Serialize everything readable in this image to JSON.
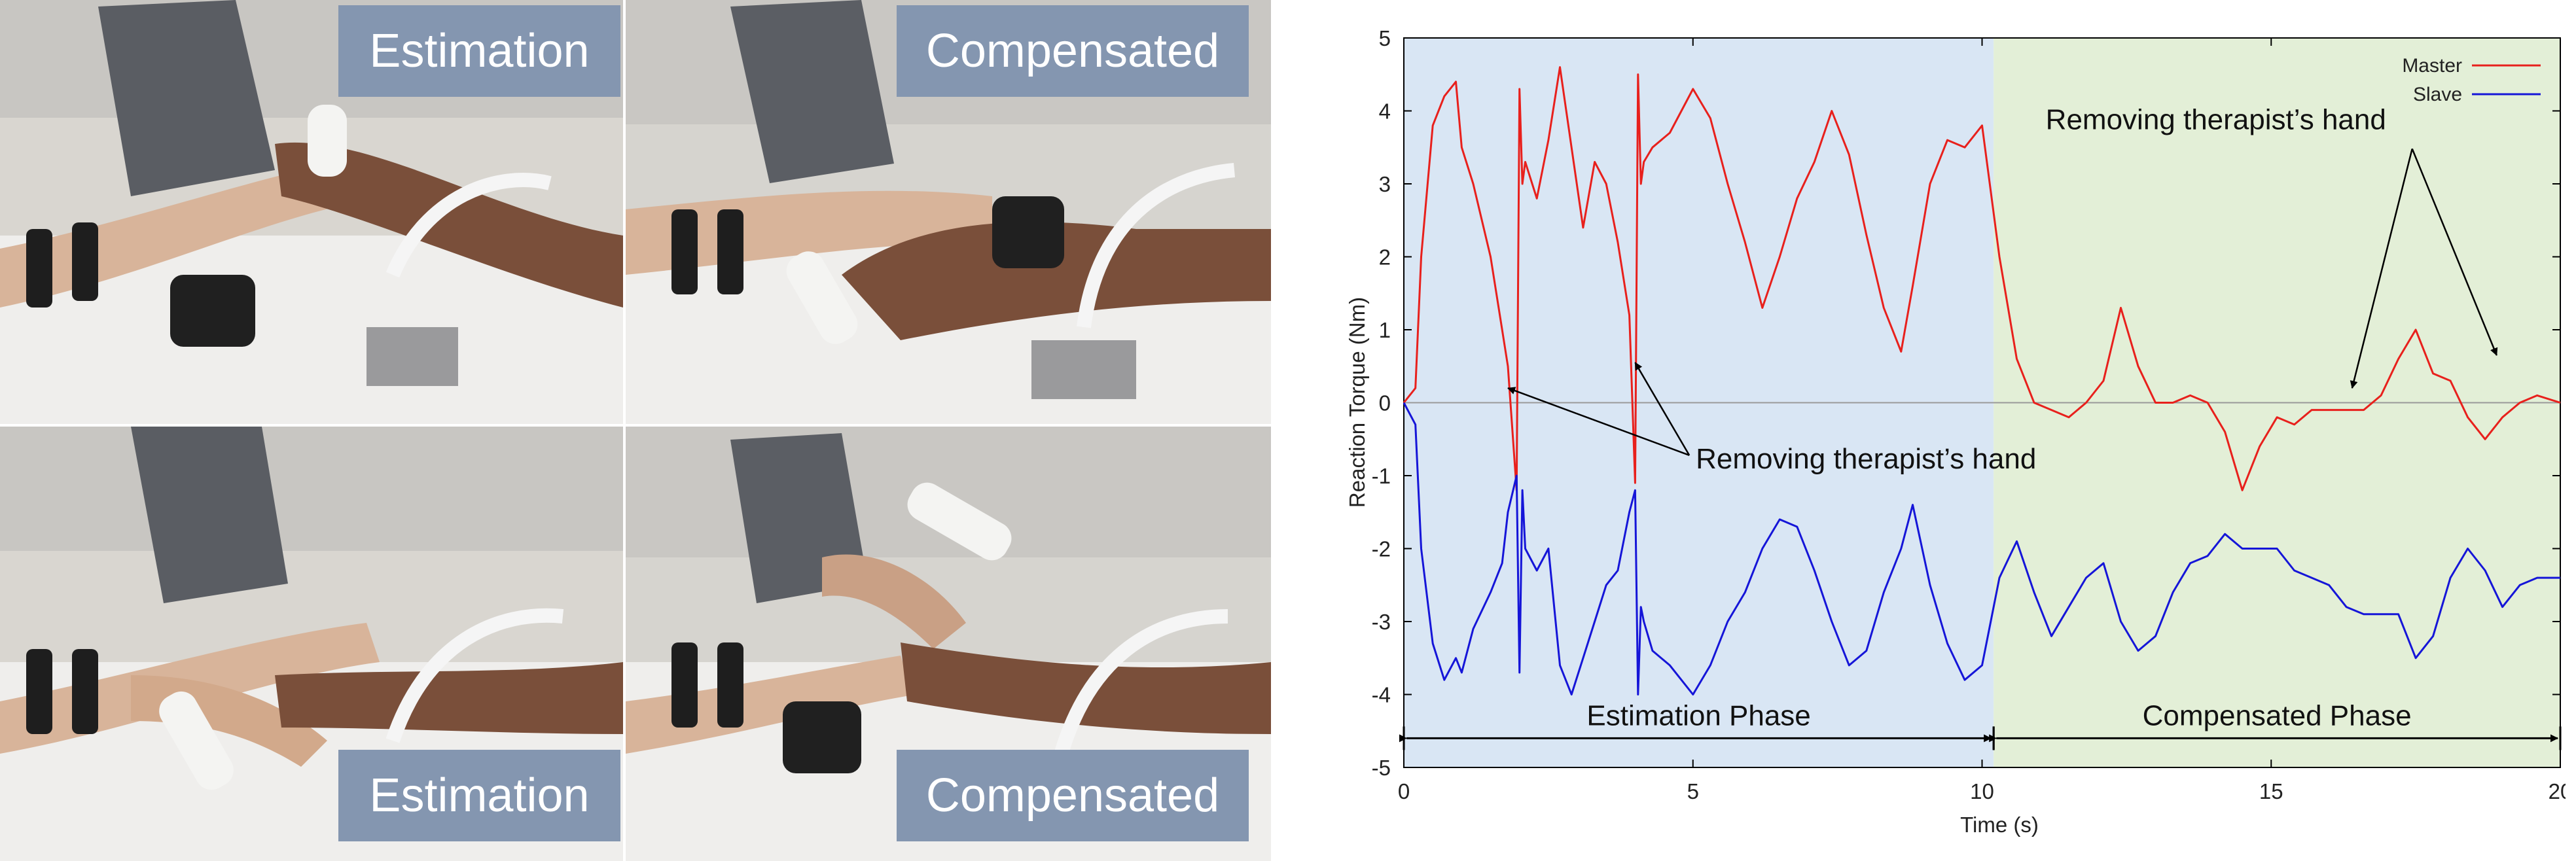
{
  "photos": {
    "top_left_caption": "Estimation",
    "top_right_caption": "Compensated",
    "bottom_left_caption": "Estimation",
    "bottom_right_caption": "Compensated"
  },
  "chart_data": {
    "type": "line",
    "title": "",
    "xlabel": "Time (s)",
    "ylabel": "Reaction Torque (Nm)",
    "xlim": [
      0,
      20
    ],
    "ylim": [
      -5,
      5
    ],
    "xticks": [
      0,
      5,
      10,
      15,
      20
    ],
    "yticks": [
      -5,
      -4,
      -3,
      -2,
      -1,
      0,
      1,
      2,
      3,
      4,
      5
    ],
    "grid": false,
    "legend_position": "top-right",
    "series": [
      {
        "name": "Master",
        "color": "#e8201c",
        "x": [
          0,
          0.2,
          0.3,
          0.5,
          0.7,
          0.9,
          1.0,
          1.2,
          1.5,
          1.7,
          1.8,
          1.95,
          2.0,
          2.05,
          2.1,
          2.3,
          2.5,
          2.7,
          2.9,
          3.1,
          3.3,
          3.5,
          3.7,
          3.9,
          4.0,
          4.05,
          4.1,
          4.15,
          4.3,
          4.6,
          5.0,
          5.3,
          5.6,
          5.9,
          6.2,
          6.5,
          6.8,
          7.1,
          7.4,
          7.7,
          8.0,
          8.3,
          8.6,
          8.8,
          9.1,
          9.4,
          9.7,
          10.0,
          10.3,
          10.6,
          10.9,
          11.2,
          11.5,
          11.8,
          12.1,
          12.4,
          12.7,
          13.0,
          13.3,
          13.6,
          13.9,
          14.2,
          14.5,
          14.8,
          15.1,
          15.4,
          15.7,
          16.0,
          16.3,
          16.6,
          16.9,
          17.2,
          17.5,
          17.8,
          18.1,
          18.4,
          18.7,
          19.0,
          19.3,
          19.6,
          20.0
        ],
        "y": [
          0,
          0.2,
          2.0,
          3.8,
          4.2,
          4.4,
          3.5,
          3.0,
          2.0,
          1.0,
          0.5,
          -1.2,
          4.3,
          3.0,
          3.3,
          2.8,
          3.6,
          4.6,
          3.5,
          2.4,
          3.3,
          3.0,
          2.2,
          1.2,
          -1.1,
          4.5,
          3.0,
          3.3,
          3.5,
          3.7,
          4.3,
          3.9,
          3.0,
          2.2,
          1.3,
          2.0,
          2.8,
          3.3,
          4.0,
          3.4,
          2.3,
          1.3,
          0.7,
          1.6,
          3.0,
          3.6,
          3.5,
          3.8,
          2.0,
          0.6,
          0.0,
          -0.1,
          -0.2,
          0.0,
          0.3,
          1.3,
          0.5,
          0.0,
          0.0,
          0.1,
          0.0,
          -0.4,
          -1.2,
          -0.6,
          -0.2,
          -0.3,
          -0.1,
          -0.1,
          -0.1,
          -0.1,
          0.1,
          0.6,
          1.0,
          0.4,
          0.3,
          -0.2,
          -0.5,
          -0.2,
          0.0,
          0.1,
          0.0
        ]
      },
      {
        "name": "Slave",
        "color": "#1515d8",
        "x": [
          0,
          0.2,
          0.3,
          0.5,
          0.7,
          0.9,
          1.0,
          1.2,
          1.5,
          1.7,
          1.8,
          1.95,
          2.0,
          2.05,
          2.1,
          2.3,
          2.5,
          2.7,
          2.9,
          3.1,
          3.3,
          3.5,
          3.7,
          3.9,
          4.0,
          4.05,
          4.1,
          4.15,
          4.3,
          4.6,
          5.0,
          5.3,
          5.6,
          5.9,
          6.2,
          6.5,
          6.8,
          7.1,
          7.4,
          7.7,
          8.0,
          8.3,
          8.6,
          8.8,
          9.1,
          9.4,
          9.7,
          10.0,
          10.3,
          10.6,
          10.9,
          11.2,
          11.5,
          11.8,
          12.1,
          12.4,
          12.7,
          13.0,
          13.3,
          13.6,
          13.9,
          14.2,
          14.5,
          14.8,
          15.1,
          15.4,
          15.7,
          16.0,
          16.3,
          16.6,
          16.9,
          17.2,
          17.5,
          17.8,
          18.1,
          18.4,
          18.7,
          19.0,
          19.3,
          19.6,
          20.0
        ],
        "y": [
          0,
          -0.3,
          -2.0,
          -3.3,
          -3.8,
          -3.5,
          -3.7,
          -3.1,
          -2.6,
          -2.2,
          -1.5,
          -1.0,
          -3.7,
          -1.2,
          -2.0,
          -2.3,
          -2.0,
          -3.6,
          -4.0,
          -3.5,
          -3.0,
          -2.5,
          -2.3,
          -1.5,
          -1.2,
          -4.0,
          -2.8,
          -3.0,
          -3.4,
          -3.6,
          -4.0,
          -3.6,
          -3.0,
          -2.6,
          -2.0,
          -1.6,
          -1.7,
          -2.3,
          -3.0,
          -3.6,
          -3.4,
          -2.6,
          -2.0,
          -1.4,
          -2.5,
          -3.3,
          -3.8,
          -3.6,
          -2.4,
          -1.9,
          -2.6,
          -3.2,
          -2.8,
          -2.4,
          -2.2,
          -3.0,
          -3.4,
          -3.2,
          -2.6,
          -2.2,
          -2.1,
          -1.8,
          -2.0,
          -2.0,
          -2.0,
          -2.3,
          -2.4,
          -2.5,
          -2.8,
          -2.9,
          -2.9,
          -2.9,
          -3.5,
          -3.2,
          -2.4,
          -2.0,
          -2.3,
          -2.8,
          -2.5,
          -2.4,
          -2.4
        ]
      }
    ],
    "zero_line": true,
    "regions": [
      {
        "label": "Estimation Phase",
        "x0": 0,
        "x1": 10.2,
        "color": "#d9e6f4"
      },
      {
        "label": "Compensated Phase",
        "x0": 10.2,
        "x1": 20,
        "color": "#e3efd7"
      }
    ],
    "phase_arrow_y": -4.6,
    "annotations": [
      {
        "text": "Removing therapist’s hand",
        "text_x": 5.05,
        "text_y": -0.9,
        "arrow_to": [
          [
            1.8,
            0.2
          ],
          [
            4.0,
            0.55
          ]
        ]
      },
      {
        "text": "Removing therapist’s hand",
        "text_x": 11.1,
        "text_y": 3.75,
        "arrow_to": [
          [
            16.4,
            0.2
          ],
          [
            18.9,
            0.65
          ]
        ]
      }
    ]
  }
}
